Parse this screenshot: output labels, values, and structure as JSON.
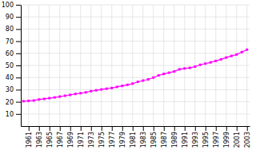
{
  "chart_data": {
    "type": "line",
    "x": [
      1960,
      1961,
      1962,
      1963,
      1964,
      1965,
      1966,
      1967,
      1968,
      1969,
      1970,
      1971,
      1972,
      1973,
      1974,
      1975,
      1976,
      1977,
      1978,
      1979,
      1980,
      1981,
      1982,
      1983,
      1984,
      1985,
      1986,
      1987,
      1988,
      1989,
      1990,
      1991,
      1992,
      1993,
      1994,
      1995,
      1996,
      1997,
      1998,
      1999,
      2000,
      2001,
      2002,
      2003
    ],
    "values": [
      20.5,
      20.8,
      21.1,
      21.9,
      22.4,
      23.0,
      23.6,
      24.3,
      25.0,
      25.7,
      26.5,
      27.1,
      27.8,
      28.8,
      29.5,
      30.2,
      30.8,
      31.4,
      32.3,
      33.1,
      34.0,
      35.0,
      36.5,
      37.5,
      38.5,
      40.0,
      41.8,
      43.0,
      44.0,
      45.0,
      46.8,
      47.5,
      48.0,
      49.0,
      50.5,
      51.5,
      52.5,
      53.7,
      55.0,
      56.5,
      57.8,
      59.0,
      61.0,
      63.0
    ],
    "color": "#ff00ff",
    "marker": "square",
    "line_style": "solid",
    "xlim": [
      1959.5,
      2003.5
    ],
    "xticks": [
      1961,
      1963,
      1965,
      1967,
      1969,
      1971,
      1973,
      1975,
      1977,
      1979,
      1981,
      1983,
      1985,
      1987,
      1989,
      1991,
      1993,
      1995,
      1997,
      1999,
      2001,
      2003
    ],
    "ylim": [
      0,
      100
    ],
    "yticks": [
      10,
      20,
      30,
      40,
      50,
      60,
      70,
      80,
      90,
      100
    ],
    "grid": true
  }
}
